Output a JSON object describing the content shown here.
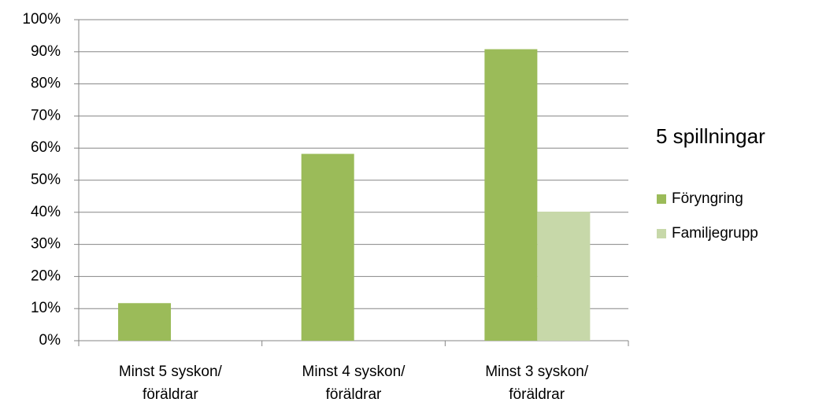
{
  "chart_data": {
    "type": "bar",
    "title": "5 spillningar",
    "categories": [
      [
        "Minst 5 syskon/",
        "föräldrar"
      ],
      [
        "Minst 4 syskon/",
        "föräldrar"
      ],
      [
        "Minst 3 syskon/",
        "föräldrar"
      ]
    ],
    "series": [
      {
        "name": "Föryngring",
        "color": "#9bbb59",
        "values": [
          11.7,
          58.2,
          90.8
        ]
      },
      {
        "name": "Familjegrupp",
        "color": "#c7d8a9",
        "values": [
          null,
          null,
          40.2
        ]
      }
    ],
    "ylim": [
      0,
      100
    ],
    "yticks": [
      {
        "value": 0,
        "label": "0%"
      },
      {
        "value": 10,
        "label": "10%"
      },
      {
        "value": 20,
        "label": "20%"
      },
      {
        "value": 30,
        "label": "30%"
      },
      {
        "value": 40,
        "label": "40%"
      },
      {
        "value": 50,
        "label": "50%"
      },
      {
        "value": 60,
        "label": "60%"
      },
      {
        "value": 70,
        "label": "70%"
      },
      {
        "value": 80,
        "label": "80%"
      },
      {
        "value": 90,
        "label": "90%"
      },
      {
        "value": 100,
        "label": "100%"
      }
    ],
    "grid": true,
    "legend": "right"
  }
}
